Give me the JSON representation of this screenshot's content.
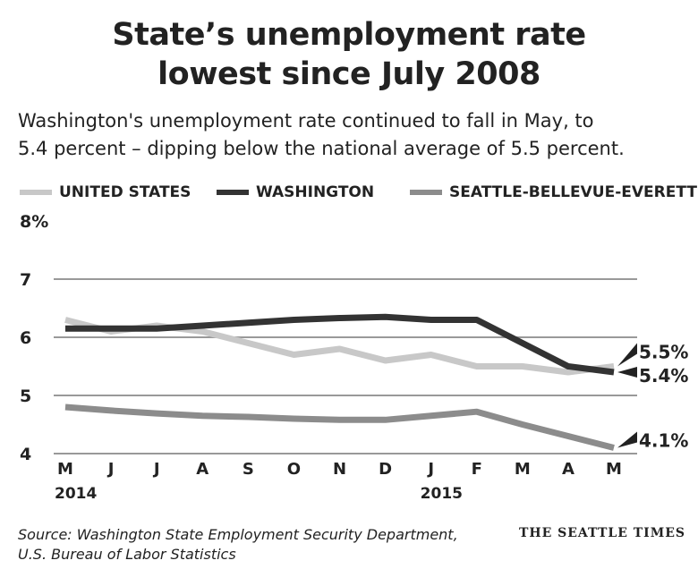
{
  "title_line1": "State’s unemployment rate",
  "title_line2": "lowest since July 2008",
  "subtitle_line1": "Washington's unemployment rate continued to fall in May, to",
  "subtitle_line2": "5.4 percent – dipping below the national average of 5.5 percent.",
  "source_line1": "Source: Washington State Employment Security Department,",
  "source_line2": "U.S. Bureau of Labor Statistics",
  "brand": "THE SEATTLE TIMES",
  "chart_data": {
    "type": "line",
    "title": "State’s unemployment rate lowest since July 2008",
    "categories": [
      "M",
      "J",
      "J",
      "A",
      "S",
      "O",
      "N",
      "D",
      "J",
      "F",
      "M",
      "A",
      "M"
    ],
    "year_labels": [
      {
        "index": 0,
        "label": "2014"
      },
      {
        "index": 8,
        "label": "2015"
      }
    ],
    "ylim": [
      4,
      8
    ],
    "yticks": [
      {
        "v": 4,
        "label": "4"
      },
      {
        "v": 5,
        "label": "5"
      },
      {
        "v": 6,
        "label": "6"
      },
      {
        "v": 7,
        "label": "7"
      },
      {
        "v": 8,
        "label": "8%"
      }
    ],
    "grid": true,
    "legend_placement": "top",
    "series": [
      {
        "name": "UNITED STATES",
        "color": "#c8c8c8",
        "values": [
          6.3,
          6.1,
          6.2,
          6.1,
          5.9,
          5.7,
          5.8,
          5.6,
          5.7,
          5.5,
          5.5,
          5.4,
          5.5
        ],
        "end_label": "5.5%"
      },
      {
        "name": "WASHINGTON",
        "color": "#333333",
        "values": [
          6.15,
          6.15,
          6.15,
          6.2,
          6.25,
          6.3,
          6.33,
          6.35,
          6.3,
          6.3,
          5.9,
          5.5,
          5.4
        ],
        "end_label": "5.4%"
      },
      {
        "name": "SEATTLE-BELLEVUE-EVERETT",
        "color": "#8c8c8c",
        "values": [
          4.8,
          4.74,
          4.69,
          4.65,
          4.63,
          4.6,
          4.58,
          4.58,
          4.65,
          4.72,
          4.5,
          4.3,
          4.1
        ],
        "end_label": "4.1%"
      }
    ]
  }
}
